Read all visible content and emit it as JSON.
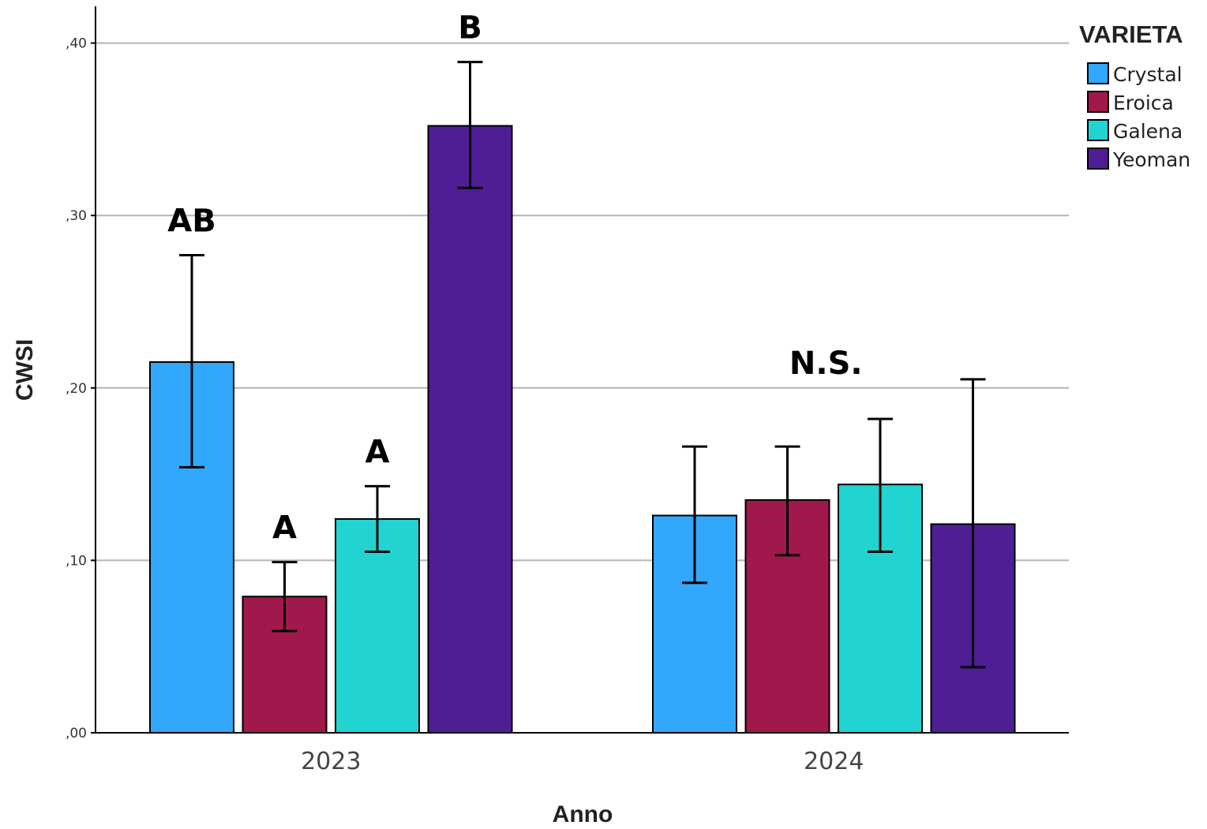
{
  "chart_data": {
    "type": "bar",
    "xlabel": "Anno",
    "ylabel": "CWSI",
    "ylim": [
      0,
      0.42
    ],
    "yticks": [
      0,
      0.1,
      0.2,
      0.3,
      0.4
    ],
    "ytick_labels": [
      ",00",
      ",10",
      ",20",
      ",30",
      ",40"
    ],
    "grid": true,
    "legend_title": "VARIETA",
    "legend_position": "top-right",
    "categories": [
      "2023",
      "2024"
    ],
    "series": [
      {
        "name": "Crystal",
        "color": "#32a8fd",
        "values": [
          0.215,
          0.126
        ],
        "err_low": [
          0.154,
          0.087
        ],
        "err_high": [
          0.277,
          0.166
        ]
      },
      {
        "name": "Eroica",
        "color": "#a0184c",
        "values": [
          0.079,
          0.135
        ],
        "err_low": [
          0.059,
          0.103
        ],
        "err_high": [
          0.099,
          0.166
        ]
      },
      {
        "name": "Galena",
        "color": "#21d4d1",
        "values": [
          0.124,
          0.144
        ],
        "err_low": [
          0.105,
          0.105
        ],
        "err_high": [
          0.143,
          0.182
        ]
      },
      {
        "name": "Yeoman",
        "color": "#501e94",
        "values": [
          0.352,
          0.121
        ],
        "err_low": [
          0.316,
          0.038
        ],
        "err_high": [
          0.389,
          0.205
        ]
      }
    ],
    "annotations": [
      {
        "text": "AB",
        "category": "2023",
        "series": "Crystal"
      },
      {
        "text": "A",
        "category": "2023",
        "series": "Eroica"
      },
      {
        "text": "A",
        "category": "2023",
        "series": "Galena"
      },
      {
        "text": "B",
        "category": "2023",
        "series": "Yeoman"
      },
      {
        "text": "N.S.",
        "category": "2024",
        "series": null
      }
    ]
  }
}
